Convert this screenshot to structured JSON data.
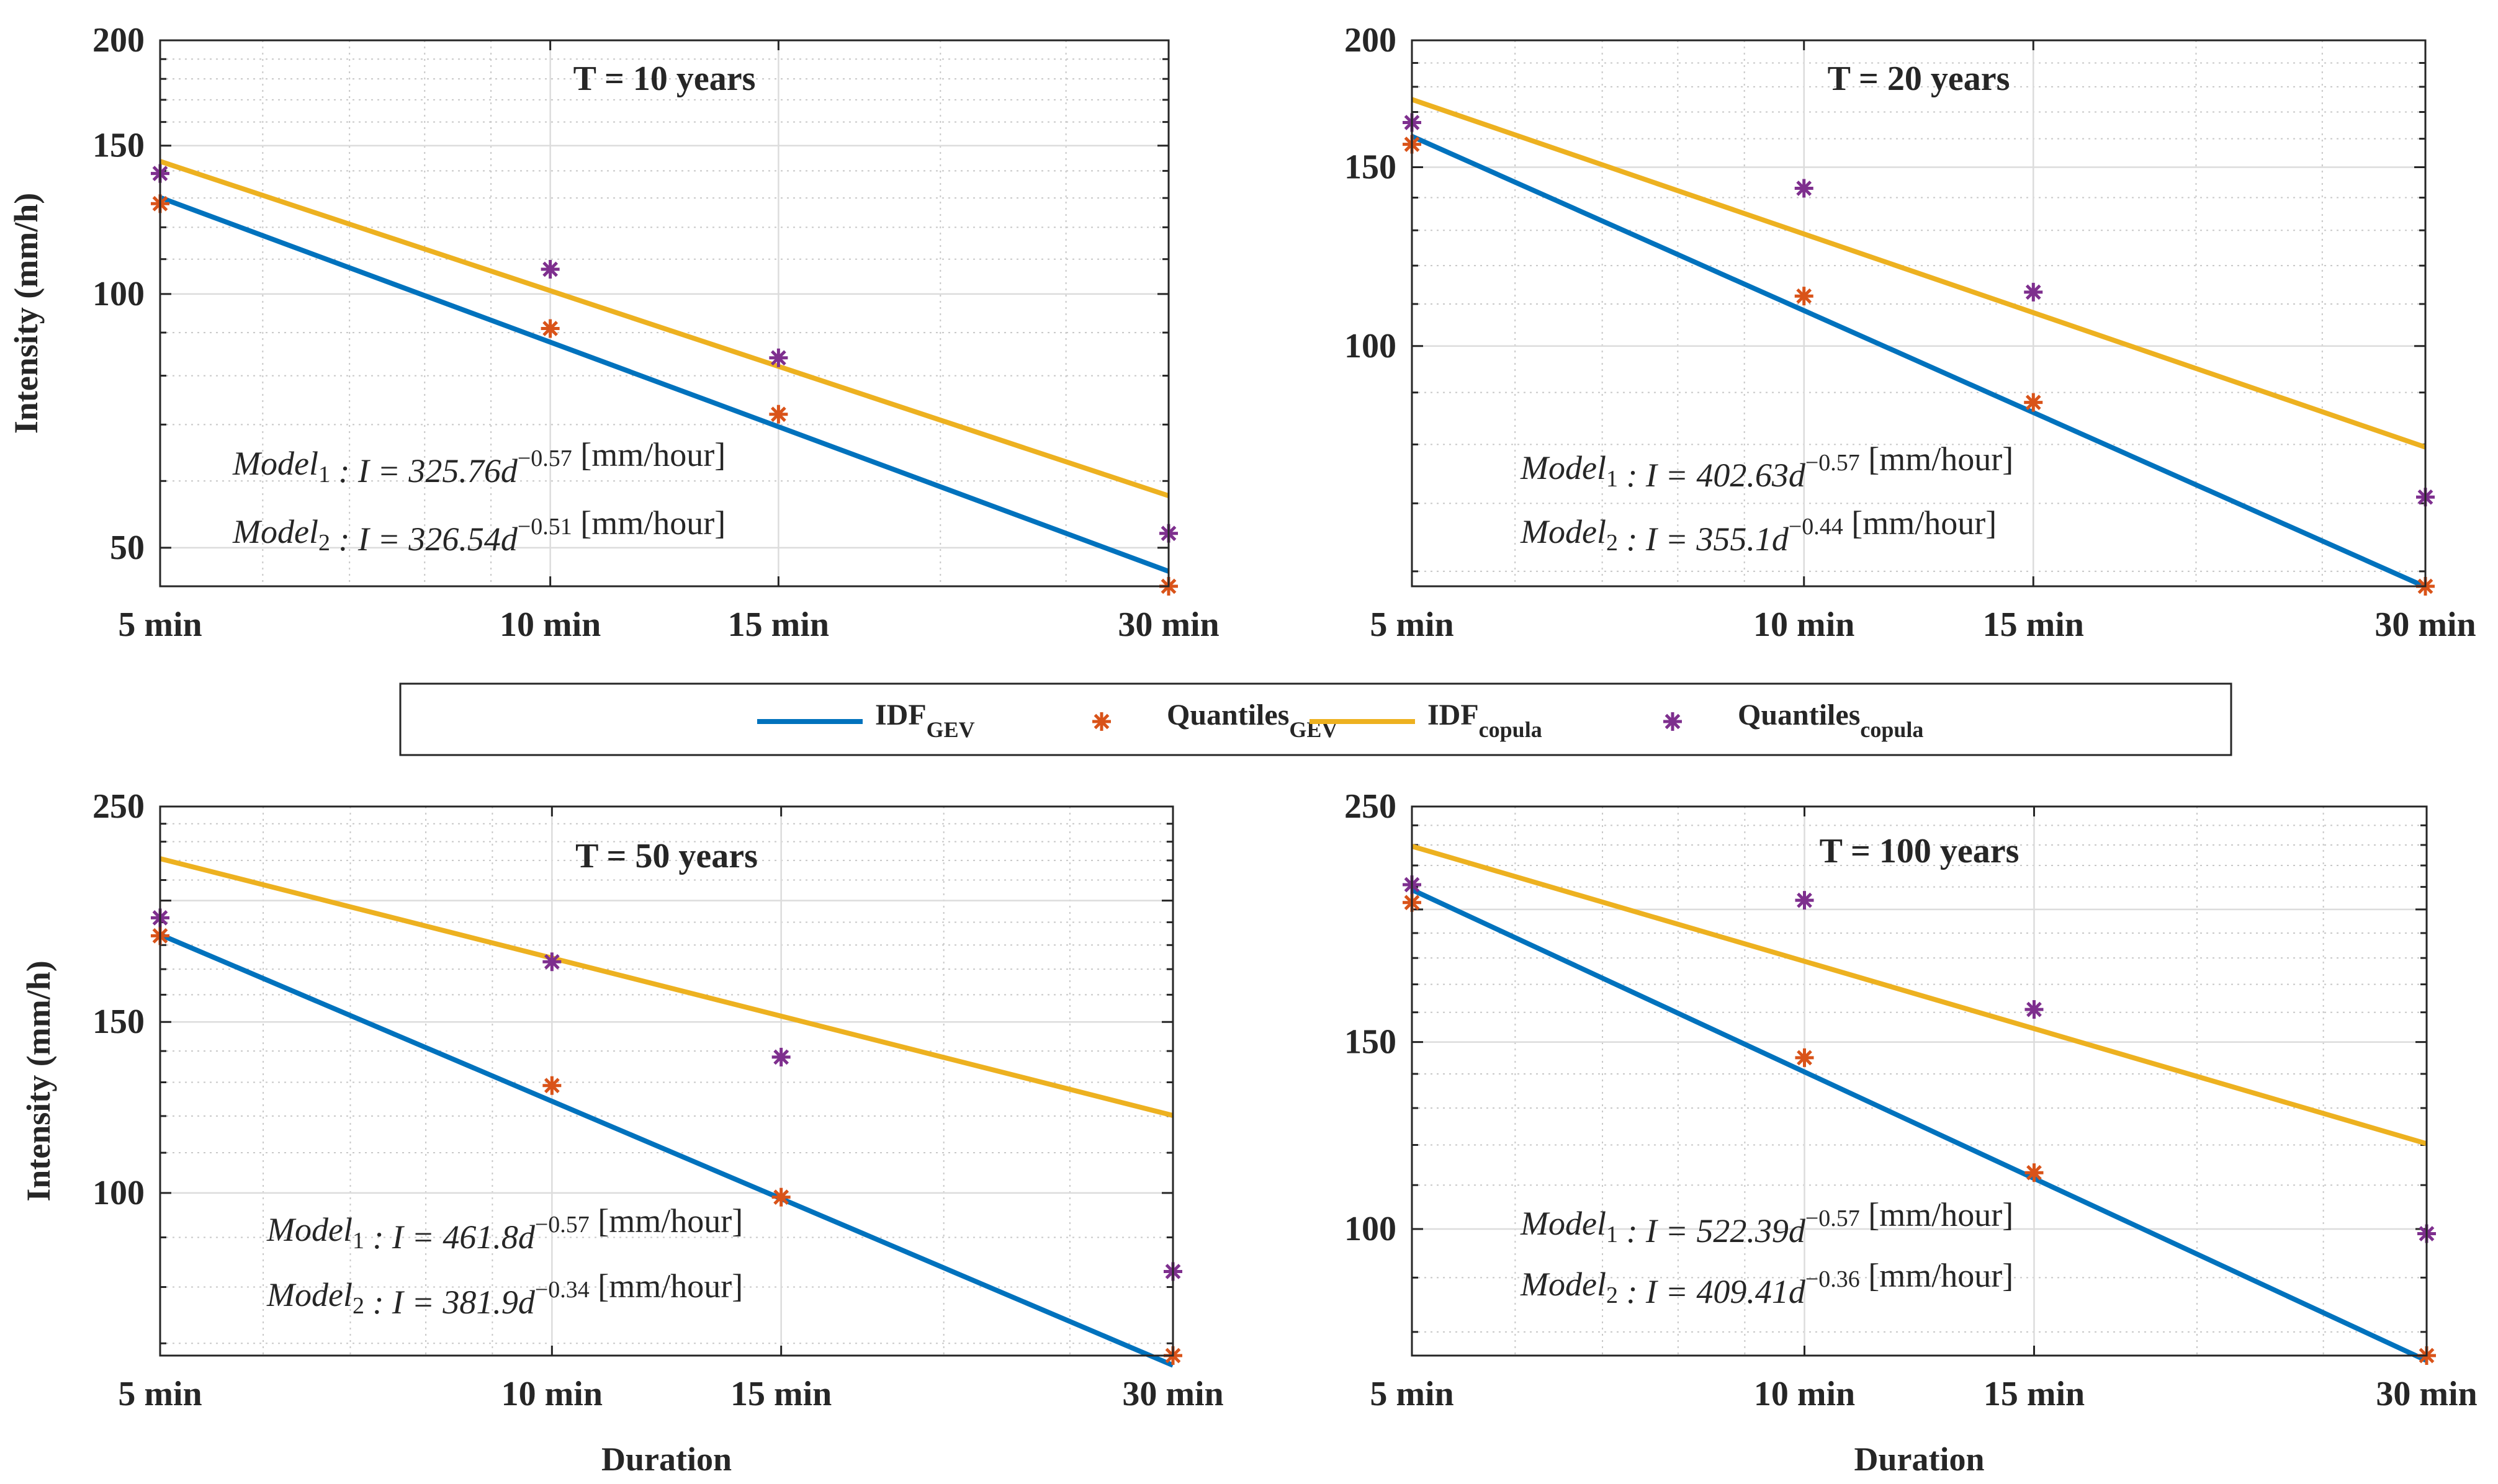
{
  "figure": {
    "legend": [
      {
        "main": "IDF",
        "sub": "GEV",
        "kind": "line",
        "color": "#0072BD"
      },
      {
        "main": "Quantiles",
        "sub": "GEV",
        "kind": "marker",
        "color": "#D95319"
      },
      {
        "main": "IDF",
        "sub": "copula",
        "kind": "line",
        "color": "#EDB120"
      },
      {
        "main": "Quantiles",
        "sub": "copula",
        "kind": "marker",
        "color": "#7E2F8E"
      }
    ],
    "colors": {
      "gev": "#0072BD",
      "copula": "#EDB120",
      "q_gev": "#D95319",
      "q_copula": "#7E2F8E"
    }
  },
  "chart_data": [
    {
      "type": "line",
      "title": "T = 10 years",
      "xlabel": "",
      "ylabel": "Intensity (mm/h)",
      "xscale": "log",
      "yscale": "log",
      "xlim": [
        5,
        30
      ],
      "ylim": [
        45,
        200
      ],
      "x": [
        5,
        10,
        15,
        30
      ],
      "x_tick_labels": [
        "5 min",
        "10 min",
        "15 min",
        "30 min"
      ],
      "y_ticks": [
        50,
        100,
        150,
        200
      ],
      "models": [
        {
          "name": "IDF_GEV",
          "a": 325.76,
          "b": -0.57
        },
        {
          "name": "IDF_copula",
          "a": 326.54,
          "b": -0.51
        }
      ],
      "quantiles_gev": [
        128,
        91,
        72,
        45
      ],
      "quantiles_copula": [
        139,
        107,
        84,
        52
      ],
      "annotations": [
        {
          "prefix": "Model",
          "index": "1",
          "body": " : I = 325.76d",
          "exp": "−0.57",
          "unit": " [mm/hour]"
        },
        {
          "prefix": "Model",
          "index": "2",
          "body": " : I = 326.54d",
          "exp": "−0.51",
          "unit": " [mm/hour]"
        }
      ]
    },
    {
      "type": "line",
      "title": "T = 20 years",
      "xlabel": "",
      "ylabel": "",
      "xscale": "log",
      "yscale": "log",
      "xlim": [
        5,
        30
      ],
      "ylim": [
        58,
        200
      ],
      "x": [
        5,
        10,
        15,
        30
      ],
      "x_tick_labels": [
        "5 min",
        "10 min",
        "15 min",
        "30 min"
      ],
      "y_ticks": [
        100,
        150,
        200
      ],
      "models": [
        {
          "name": "IDF_GEV",
          "a": 402.63,
          "b": -0.57
        },
        {
          "name": "IDF_copula",
          "a": 355.1,
          "b": -0.44
        }
      ],
      "quantiles_gev": [
        158,
        112,
        88,
        58
      ],
      "quantiles_copula": [
        166,
        143,
        113,
        71
      ],
      "annotations": [
        {
          "prefix": "Model",
          "index": "1",
          "body": " : I = 402.63d",
          "exp": "−0.57",
          "unit": " [mm/hour]"
        },
        {
          "prefix": "Model",
          "index": "2",
          "body": " : I = 355.1d",
          "exp": "−0.44",
          "unit": " [mm/hour]"
        }
      ]
    },
    {
      "type": "line",
      "title": "T = 50 years",
      "xlabel": "Duration",
      "ylabel": "Intensity  (mm/h)",
      "xscale": "log",
      "yscale": "log",
      "xlim": [
        5,
        30
      ],
      "ylim": [
        68,
        250
      ],
      "x": [
        5,
        10,
        15,
        30
      ],
      "x_tick_labels": [
        "5 min",
        "10 min",
        "15 min",
        "30 min"
      ],
      "y_ticks": [
        100,
        150,
        250
      ],
      "models": [
        {
          "name": "IDF_GEV",
          "a": 461.8,
          "b": -0.57
        },
        {
          "name": "IDF_copula",
          "a": 381.9,
          "b": -0.34
        }
      ],
      "quantiles_gev": [
        184,
        129,
        99,
        68
      ],
      "quantiles_copula": [
        192,
        173,
        138,
        83
      ],
      "annotations": [
        {
          "prefix": "Model",
          "index": "1",
          "body": " : I = 461.8d",
          "exp": "−0.57",
          "unit": " [mm/hour]"
        },
        {
          "prefix": "Model",
          "index": "2",
          "body": " : I = 381.9d",
          "exp": "−0.34",
          "unit": " [mm/hour]"
        }
      ]
    },
    {
      "type": "line",
      "title": "T = 100 years",
      "xlabel": "Duration",
      "ylabel": "",
      "xscale": "log",
      "yscale": "log",
      "xlim": [
        5,
        30
      ],
      "ylim": [
        76,
        250
      ],
      "x": [
        5,
        10,
        15,
        30
      ],
      "x_tick_labels": [
        "5 min",
        "10 min",
        "15 min",
        "30 min"
      ],
      "y_ticks": [
        100,
        150,
        250
      ],
      "models": [
        {
          "name": "IDF_GEV",
          "a": 522.39,
          "b": -0.57
        },
        {
          "name": "IDF_copula",
          "a": 409.41,
          "b": -0.36
        }
      ],
      "quantiles_gev": [
        203,
        145,
        113,
        76
      ],
      "quantiles_copula": [
        211,
        204,
        161,
        99
      ],
      "annotations": [
        {
          "prefix": "Model",
          "index": "1",
          "body": " : I = 522.39d",
          "exp": "−0.57",
          "unit": " [mm/hour]"
        },
        {
          "prefix": "Model",
          "index": "2",
          "body": " : I = 409.41d",
          "exp": "−0.36",
          "unit": " [mm/hour]"
        }
      ]
    }
  ]
}
